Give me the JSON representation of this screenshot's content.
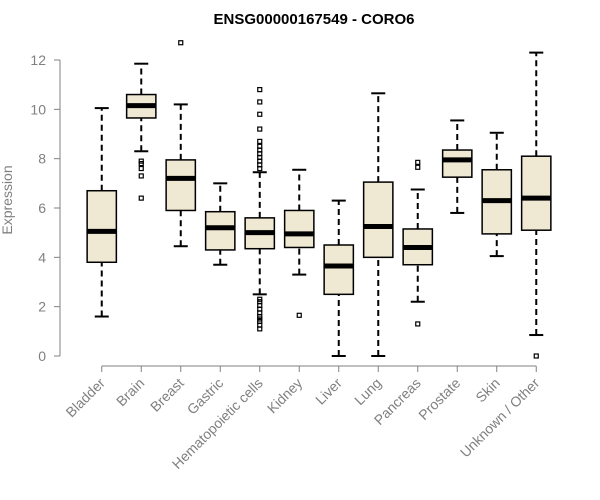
{
  "chart_data": {
    "type": "boxplot",
    "title": "ENSG00000167549 - CORO6",
    "xlabel": "",
    "ylabel": "Expression",
    "ylim": [
      0,
      12
    ],
    "yticks": [
      0,
      2,
      4,
      6,
      8,
      10,
      12
    ],
    "colors": {
      "box_fill": "#efe8d2",
      "stroke": "#000000",
      "axis": "#808080"
    },
    "categories": [
      "Bladder",
      "Brain",
      "Breast",
      "Gastric",
      "Hematopoietic cells",
      "Kidney",
      "Liver",
      "Lung",
      "Pancreas",
      "Prostate",
      "Skin",
      "Unknown / Other"
    ],
    "boxes": [
      {
        "label": "Bladder",
        "whisker_low": 1.6,
        "q1": 3.8,
        "median": 5.05,
        "q3": 6.7,
        "whisker_high": 10.05,
        "outliers": []
      },
      {
        "label": "Brain",
        "whisker_low": 8.3,
        "q1": 9.65,
        "median": 10.15,
        "q3": 10.6,
        "whisker_high": 11.85,
        "outliers": [
          6.4,
          7.3,
          7.6,
          7.8,
          7.9
        ]
      },
      {
        "label": "Breast",
        "whisker_low": 4.45,
        "q1": 5.9,
        "median": 7.2,
        "q3": 7.95,
        "whisker_high": 10.2,
        "outliers": [
          12.7
        ]
      },
      {
        "label": "Gastric",
        "whisker_low": 3.7,
        "q1": 4.3,
        "median": 5.2,
        "q3": 5.85,
        "whisker_high": 7.0,
        "outliers": []
      },
      {
        "label": "Hematopoietic cells",
        "whisker_low": 2.5,
        "q1": 4.35,
        "median": 5.0,
        "q3": 5.6,
        "whisker_high": 7.45,
        "outliers": [
          1.1,
          1.25,
          1.4,
          1.5,
          1.6,
          1.75,
          1.9,
          2.05,
          2.2,
          2.3,
          7.6,
          7.75,
          7.9,
          8.05,
          8.2,
          8.35,
          8.5,
          8.7,
          9.2,
          9.8,
          10.3,
          10.8
        ]
      },
      {
        "label": "Kidney",
        "whisker_low": 3.3,
        "q1": 4.4,
        "median": 4.95,
        "q3": 5.9,
        "whisker_high": 7.55,
        "outliers": [
          1.65
        ]
      },
      {
        "label": "Liver",
        "whisker_low": 0.0,
        "q1": 2.5,
        "median": 3.65,
        "q3": 4.5,
        "whisker_high": 6.3,
        "outliers": []
      },
      {
        "label": "Lung",
        "whisker_low": 0.0,
        "q1": 4.0,
        "median": 5.25,
        "q3": 7.05,
        "whisker_high": 10.65,
        "outliers": []
      },
      {
        "label": "Pancreas",
        "whisker_low": 2.2,
        "q1": 3.7,
        "median": 4.4,
        "q3": 5.15,
        "whisker_high": 6.75,
        "outliers": [
          1.3,
          7.65,
          7.85
        ]
      },
      {
        "label": "Prostate",
        "whisker_low": 5.8,
        "q1": 7.25,
        "median": 7.95,
        "q3": 8.35,
        "whisker_high": 9.55,
        "outliers": []
      },
      {
        "label": "Skin",
        "whisker_low": 4.05,
        "q1": 4.95,
        "median": 6.3,
        "q3": 7.55,
        "whisker_high": 9.05,
        "outliers": []
      },
      {
        "label": "Unknown / Other",
        "whisker_low": 0.85,
        "q1": 5.1,
        "median": 6.4,
        "q3": 8.1,
        "whisker_high": 12.3,
        "outliers": [
          0.0
        ]
      }
    ]
  }
}
